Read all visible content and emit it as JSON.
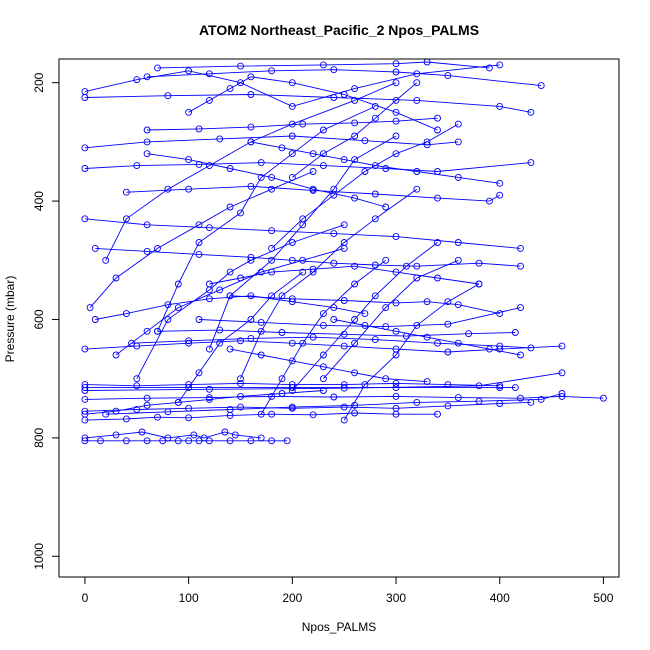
{
  "chart_data": {
    "type": "line",
    "title": "ATOM2 Northeast_Pacific_2 Npos_PALMS",
    "xlabel": "Npos_PALMS",
    "ylabel": "Pressure (mbar)",
    "xlim": [
      -25,
      515
    ],
    "ylim": [
      1035,
      160
    ],
    "y_inverted": true,
    "x_ticks": [
      0,
      100,
      200,
      300,
      400,
      500
    ],
    "y_ticks": [
      200,
      400,
      600,
      800,
      1000
    ],
    "grid": false,
    "legend": "none",
    "colors": {
      "series": "#0000ff",
      "axis": "#000000"
    },
    "series": [
      {
        "x": [
          0,
          15,
          40,
          60,
          75,
          90,
          100,
          110,
          120,
          140,
          160,
          180,
          195
        ],
        "y": [
          805,
          805,
          805,
          805,
          805,
          805,
          805,
          805,
          805,
          805,
          805,
          805,
          805
        ]
      },
      {
        "x": [
          0,
          30,
          55,
          80,
          105,
          115,
          135,
          145,
          170
        ],
        "y": [
          800,
          795,
          790,
          800,
          795,
          800,
          790,
          795,
          800
        ]
      },
      {
        "x": [
          0,
          40,
          70,
          100,
          140,
          180,
          220,
          260,
          300,
          340
        ],
        "y": [
          770,
          768,
          765,
          766,
          762,
          760,
          761,
          758,
          760,
          760
        ]
      },
      {
        "x": [
          0,
          50,
          100,
          150,
          200,
          250,
          300,
          350,
          400,
          430
        ],
        "y": [
          755,
          752,
          750,
          748,
          750,
          748,
          750,
          746,
          742,
          740
        ]
      },
      {
        "x": [
          0,
          60,
          120,
          180,
          240,
          300,
          360,
          420,
          460,
          500
        ],
        "y": [
          735,
          733,
          732,
          730,
          731,
          730,
          732,
          733,
          730,
          733
        ]
      },
      {
        "x": [
          0,
          100,
          200,
          300,
          400,
          415
        ],
        "y": [
          715,
          715,
          715,
          715,
          715,
          715
        ]
      },
      {
        "x": [
          0,
          50,
          100,
          150,
          200,
          250,
          300,
          350,
          400
        ],
        "y": [
          710,
          712,
          710,
          708,
          710,
          710,
          708,
          710,
          712
        ]
      },
      {
        "x": [
          20,
          80,
          140,
          200,
          260,
          320,
          380,
          440,
          460
        ],
        "y": [
          760,
          756,
          752,
          748,
          745,
          740,
          738,
          735,
          725
        ]
      },
      {
        "x": [
          0,
          120,
          250,
          380,
          460
        ],
        "y": [
          720,
          718,
          716,
          712,
          690
        ]
      },
      {
        "x": [
          0,
          50,
          100,
          150,
          200,
          250,
          300,
          350,
          400,
          460
        ],
        "y": [
          650,
          645,
          640,
          636,
          640,
          645,
          650,
          655,
          650,
          645
        ]
      },
      {
        "x": [
          45,
          100,
          160,
          220,
          280,
          340,
          400,
          430
        ],
        "y": [
          640,
          636,
          632,
          630,
          634,
          640,
          645,
          648
        ]
      },
      {
        "x": [
          70,
          130,
          190,
          250,
          310,
          370,
          415
        ],
        "y": [
          620,
          618,
          622,
          625,
          628,
          624,
          622
        ]
      },
      {
        "x": [
          110,
          170,
          230,
          290,
          350,
          420
        ],
        "y": [
          600,
          605,
          610,
          612,
          608,
          580
        ]
      },
      {
        "x": [
          140,
          200,
          250,
          300,
          330,
          360,
          400
        ],
        "y": [
          560,
          565,
          568,
          572,
          570,
          575,
          590
        ]
      },
      {
        "x": [
          10,
          60,
          110,
          160,
          200,
          240,
          280,
          320,
          380,
          420
        ],
        "y": [
          480,
          485,
          490,
          495,
          500,
          505,
          508,
          510,
          505,
          510
        ]
      },
      {
        "x": [
          0,
          60,
          120,
          180,
          240,
          300,
          360,
          420
        ],
        "y": [
          430,
          440,
          445,
          450,
          455,
          460,
          470,
          480
        ]
      },
      {
        "x": [
          40,
          100,
          160,
          220,
          280,
          340,
          390,
          400
        ],
        "y": [
          385,
          380,
          375,
          382,
          388,
          395,
          400,
          390
        ]
      },
      {
        "x": [
          0,
          50,
          110,
          170,
          230,
          290,
          340,
          430
        ],
        "y": [
          345,
          340,
          338,
          335,
          340,
          345,
          350,
          335
        ]
      },
      {
        "x": [
          0,
          60,
          130,
          200,
          270,
          330,
          360
        ],
        "y": [
          310,
          300,
          295,
          290,
          298,
          305,
          300
        ]
      },
      {
        "x": [
          60,
          110,
          160,
          210,
          260,
          300,
          340
        ],
        "y": [
          280,
          278,
          275,
          270,
          268,
          265,
          260
        ]
      },
      {
        "x": [
          0,
          80,
          160,
          240,
          320,
          400,
          430
        ],
        "y": [
          225,
          222,
          220,
          225,
          230,
          240,
          250
        ]
      },
      {
        "x": [
          60,
          120,
          180,
          240,
          300,
          350,
          440
        ],
        "y": [
          190,
          185,
          180,
          178,
          182,
          188,
          205
        ]
      },
      {
        "x": [
          70,
          150,
          230,
          300,
          330,
          390
        ],
        "y": [
          175,
          172,
          170,
          168,
          165,
          175
        ]
      },
      {
        "x": [
          0,
          50,
          100,
          150,
          200,
          260,
          320,
          400
        ],
        "y": [
          215,
          195,
          180,
          200,
          240,
          210,
          185,
          170
        ]
      },
      {
        "x": [
          20,
          40,
          80,
          120,
          160,
          200,
          260,
          300
        ],
        "y": [
          500,
          430,
          380,
          340,
          300,
          270,
          230,
          200
        ]
      },
      {
        "x": [
          70,
          90,
          110,
          150,
          170,
          200,
          230,
          280
        ],
        "y": [
          620,
          540,
          470,
          420,
          360,
          320,
          280,
          240
        ]
      },
      {
        "x": [
          120,
          140,
          180,
          210,
          240,
          260,
          300
        ],
        "y": [
          650,
          560,
          500,
          440,
          380,
          330,
          290
        ]
      },
      {
        "x": [
          150,
          170,
          190,
          220,
          250,
          280,
          320
        ],
        "y": [
          700,
          620,
          560,
          520,
          470,
          430,
          380
        ]
      },
      {
        "x": [
          200,
          230,
          260,
          280,
          310,
          340
        ],
        "y": [
          720,
          660,
          600,
          560,
          510,
          470
        ]
      },
      {
        "x": [
          230,
          260,
          290,
          320,
          360
        ],
        "y": [
          700,
          640,
          580,
          530,
          500
        ]
      },
      {
        "x": [
          5,
          30,
          70,
          110,
          140,
          180,
          220
        ],
        "y": [
          580,
          530,
          480,
          440,
          410,
          380,
          350
        ]
      },
      {
        "x": [
          50,
          80,
          120,
          140,
          160,
          200,
          250
        ],
        "y": [
          700,
          600,
          550,
          520,
          500,
          470,
          440
        ]
      },
      {
        "x": [
          90,
          110,
          130,
          160,
          180,
          210
        ],
        "y": [
          740,
          690,
          640,
          600,
          560,
          520
        ]
      },
      {
        "x": [
          170,
          190,
          210,
          230,
          260,
          290
        ],
        "y": [
          760,
          700,
          640,
          590,
          540,
          500
        ]
      },
      {
        "x": [
          250,
          270,
          300,
          320,
          350,
          380
        ],
        "y": [
          770,
          710,
          660,
          610,
          570,
          540
        ]
      },
      {
        "x": [
          100,
          120,
          140,
          160,
          200,
          250,
          300,
          340
        ],
        "y": [
          250,
          230,
          210,
          190,
          200,
          220,
          250,
          280
        ]
      },
      {
        "x": [
          180,
          210,
          240,
          270,
          300,
          330,
          360
        ],
        "y": [
          480,
          430,
          390,
          350,
          320,
          300,
          270
        ]
      },
      {
        "x": [
          30,
          60,
          90,
          130,
          170,
          210,
          250
        ],
        "y": [
          660,
          620,
          580,
          550,
          520,
          500,
          480
        ]
      },
      {
        "x": [
          60,
          100,
          140,
          180,
          220,
          260,
          290
        ],
        "y": [
          320,
          330,
          345,
          360,
          380,
          395,
          410
        ]
      },
      {
        "x": [
          200,
          230,
          260,
          280,
          300,
          320
        ],
        "y": [
          360,
          320,
          290,
          260,
          230,
          200
        ]
      },
      {
        "x": [
          120,
          150,
          180,
          220,
          260,
          300,
          340,
          380
        ],
        "y": [
          540,
          530,
          520,
          515,
          510,
          520,
          530,
          540
        ]
      },
      {
        "x": [
          10,
          40,
          80,
          120,
          160,
          200,
          240,
          270
        ],
        "y": [
          600,
          590,
          575,
          565,
          560,
          570,
          580,
          590
        ]
      },
      {
        "x": [
          140,
          170,
          200,
          230,
          260,
          290,
          330
        ],
        "y": [
          650,
          660,
          670,
          680,
          690,
          700,
          705
        ]
      },
      {
        "x": [
          160,
          190,
          220,
          250,
          280,
          320,
          360,
          400
        ],
        "y": [
          300,
          310,
          320,
          330,
          340,
          350,
          360,
          370
        ]
      },
      {
        "x": [
          0,
          30,
          60,
          90,
          120,
          150,
          190,
          230
        ],
        "y": [
          760,
          755,
          745,
          740,
          735,
          730,
          725,
          720
        ]
      },
      {
        "x": [
          240,
          270,
          300,
          330,
          360,
          390,
          420
        ],
        "y": [
          600,
          610,
          620,
          630,
          640,
          650,
          660
        ]
      }
    ]
  }
}
